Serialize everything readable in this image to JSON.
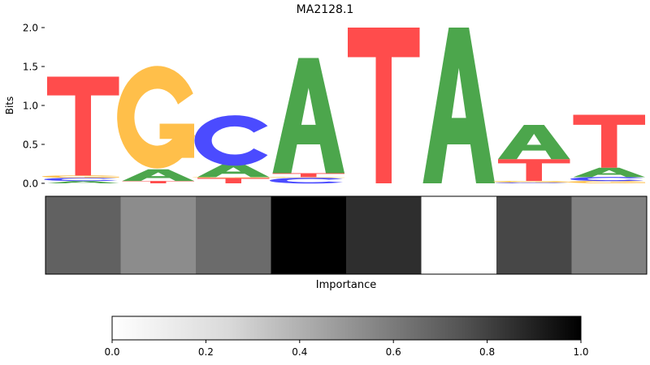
{
  "chart_data": [
    {
      "type": "sequence-logo",
      "title": "MA2128.1",
      "ylabel": "Bits",
      "ylim": [
        0,
        2.0
      ],
      "yticks": [
        "0.0",
        "0.5",
        "1.0",
        "1.5",
        "2.0"
      ],
      "base_colors": {
        "A": "#4CA64C",
        "C": "#4B4BFF",
        "G": "#FFBF4A",
        "T": "#FF4C4C"
      },
      "positions": [
        {
          "index": 1,
          "letters": [
            {
              "base": "A",
              "bits": 0.03
            },
            {
              "base": "C",
              "bits": 0.04
            },
            {
              "base": "G",
              "bits": 0.03
            },
            {
              "base": "T",
              "bits": 1.27
            }
          ]
        },
        {
          "index": 2,
          "letters": [
            {
              "base": "T",
              "bits": 0.03
            },
            {
              "base": "A",
              "bits": 0.15
            },
            {
              "base": "G",
              "bits": 1.22
            }
          ]
        },
        {
          "index": 3,
          "letters": [
            {
              "base": "T",
              "bits": 0.07
            },
            {
              "base": "G",
              "bits": 0.01
            },
            {
              "base": "A",
              "bits": 0.17
            },
            {
              "base": "C",
              "bits": 0.6
            }
          ]
        },
        {
          "index": 4,
          "letters": [
            {
              "base": "C",
              "bits": 0.07
            },
            {
              "base": "G",
              "bits": 0.01
            },
            {
              "base": "T",
              "bits": 0.05
            },
            {
              "base": "A",
              "bits": 1.48
            }
          ]
        },
        {
          "index": 5,
          "letters": [
            {
              "base": "T",
              "bits": 2.0
            }
          ]
        },
        {
          "index": 6,
          "letters": [
            {
              "base": "A",
              "bits": 2.0
            }
          ]
        },
        {
          "index": 7,
          "letters": [
            {
              "base": "C",
              "bits": 0.01
            },
            {
              "base": "G",
              "bits": 0.02
            },
            {
              "base": "T",
              "bits": 0.28
            },
            {
              "base": "A",
              "bits": 0.44
            }
          ]
        },
        {
          "index": 8,
          "letters": [
            {
              "base": "G",
              "bits": 0.03
            },
            {
              "base": "C",
              "bits": 0.05
            },
            {
              "base": "A",
              "bits": 0.12
            },
            {
              "base": "T",
              "bits": 0.68
            }
          ]
        }
      ]
    },
    {
      "type": "heatmap",
      "xlabel": "Importance",
      "values": [
        0.62,
        0.45,
        0.58,
        1.0,
        0.82,
        0.0,
        0.72,
        0.5
      ]
    },
    {
      "type": "colorbar",
      "range": [
        0.0,
        1.0
      ],
      "ticks": [
        "0.0",
        "0.2",
        "0.4",
        "0.6",
        "0.8",
        "1.0"
      ],
      "colormap": "Greys"
    }
  ]
}
